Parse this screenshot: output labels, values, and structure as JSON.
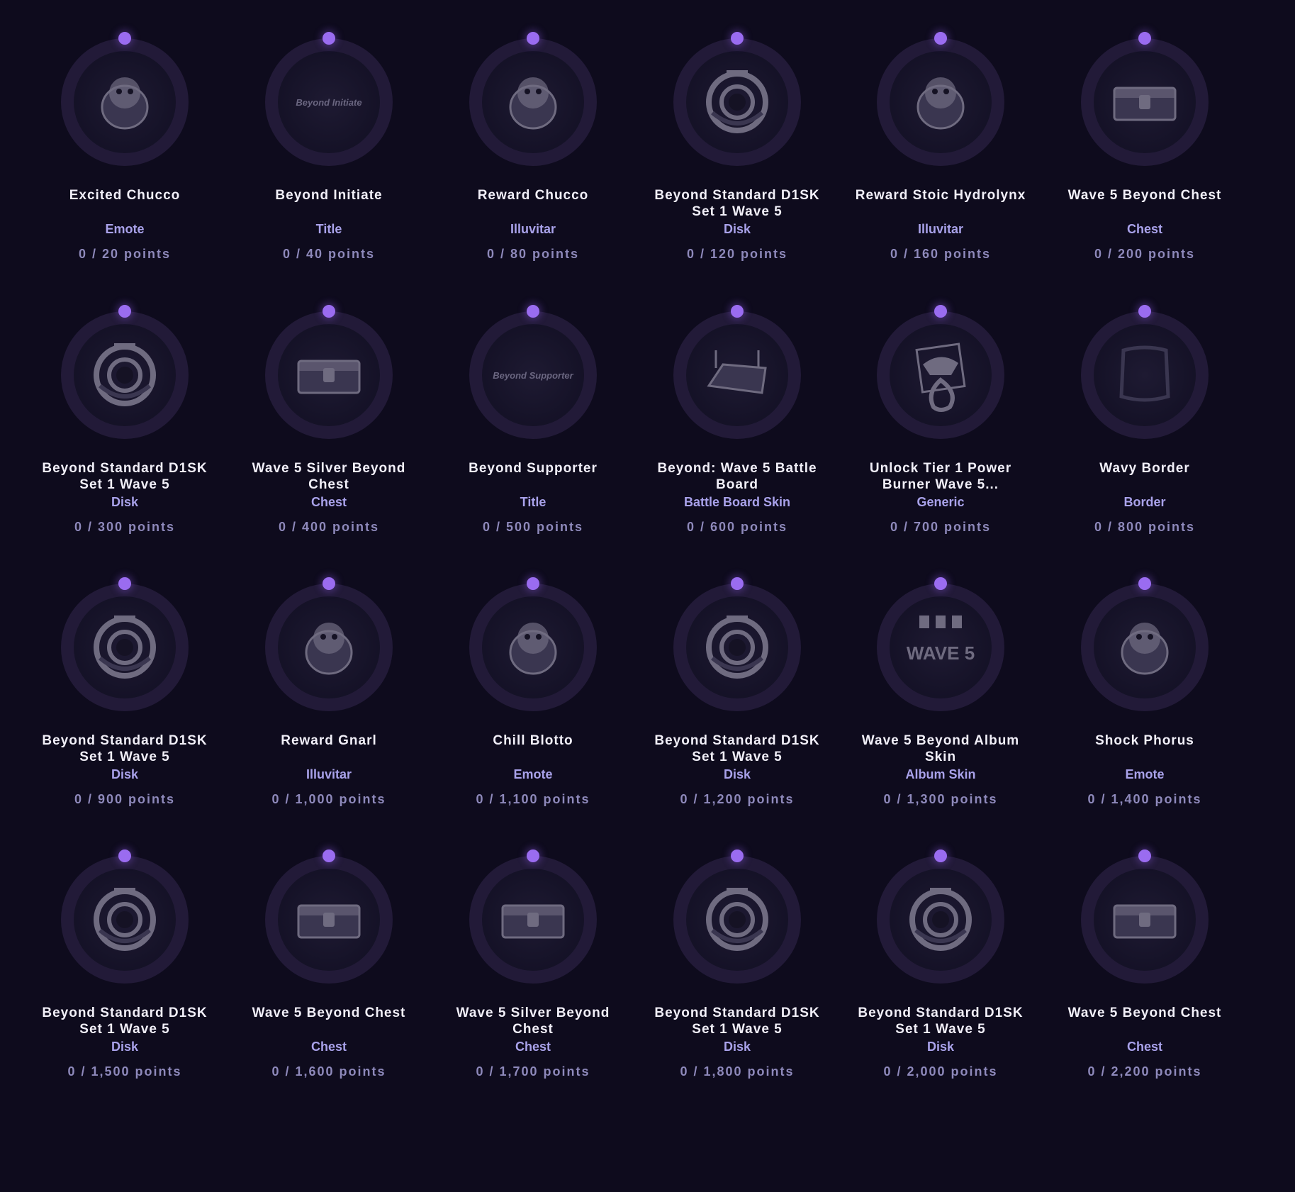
{
  "colors": {
    "background": "#0e0b1d",
    "ring": "#221a38",
    "progress_dot": "#9a6cf0",
    "type_text": "#a9a2ea",
    "points_text": "#8e89bb"
  },
  "rewards": [
    {
      "name": "Excited Chucco",
      "type": "Emote",
      "points": "0 / 20 points",
      "icon": "creature-icon"
    },
    {
      "name": "Beyond Initiate",
      "type": "Title",
      "points": "0 / 40 points",
      "icon": "title-text",
      "inner_text": "Beyond Initiate"
    },
    {
      "name": "Reward Chucco",
      "type": "Illuvitar",
      "points": "0 / 80 points",
      "icon": "creature-icon"
    },
    {
      "name": "Beyond Standard D1SK Set 1 Wave 5",
      "type": "Disk",
      "points": "0 / 120 points",
      "icon": "disk-icon"
    },
    {
      "name": "Reward Stoic Hydrolynx",
      "type": "Illuvitar",
      "points": "0 / 160 points",
      "icon": "creature-icon"
    },
    {
      "name": "Wave 5 Beyond Chest",
      "type": "Chest",
      "points": "0 / 200 points",
      "icon": "chest-icon"
    },
    {
      "name": "Beyond Standard D1SK Set 1 Wave 5",
      "type": "Disk",
      "points": "0 / 300 points",
      "icon": "disk-icon"
    },
    {
      "name": "Wave 5 Silver Beyond Chest",
      "type": "Chest",
      "points": "0 / 400 points",
      "icon": "chest-icon"
    },
    {
      "name": "Beyond Supporter",
      "type": "Title",
      "points": "0 / 500 points",
      "icon": "title-text",
      "inner_text": "Beyond Supporter"
    },
    {
      "name": "Beyond: Wave 5 Battle Board",
      "type": "Battle Board Skin",
      "points": "0 / 600 points",
      "icon": "battle-board-icon"
    },
    {
      "name": "Unlock Tier 1 Power Burner Wave 5...",
      "type": "Generic",
      "points": "0 / 700 points",
      "icon": "power-burner-icon"
    },
    {
      "name": "Wavy Border",
      "type": "Border",
      "points": "0 / 800 points",
      "icon": "border-icon"
    },
    {
      "name": "Beyond Standard D1SK Set 1 Wave 5",
      "type": "Disk",
      "points": "0 / 900 points",
      "icon": "disk-icon"
    },
    {
      "name": "Reward Gnarl",
      "type": "Illuvitar",
      "points": "0 / 1,000 points",
      "icon": "creature-icon"
    },
    {
      "name": "Chill Blotto",
      "type": "Emote",
      "points": "0 / 1,100 points",
      "icon": "creature-icon"
    },
    {
      "name": "Beyond Standard D1SK Set 1 Wave 5",
      "type": "Disk",
      "points": "0 / 1,200 points",
      "icon": "disk-icon"
    },
    {
      "name": "Wave 5 Beyond Album Skin",
      "type": "Album Skin",
      "points": "0 / 1,300 points",
      "icon": "album-icon",
      "inner_text": "WAVE 5"
    },
    {
      "name": "Shock Phorus",
      "type": "Emote",
      "points": "0 / 1,400 points",
      "icon": "creature-icon"
    },
    {
      "name": "Beyond Standard D1SK Set 1 Wave 5",
      "type": "Disk",
      "points": "0 / 1,500 points",
      "icon": "disk-icon"
    },
    {
      "name": "Wave 5 Beyond Chest",
      "type": "Chest",
      "points": "0 / 1,600 points",
      "icon": "chest-icon"
    },
    {
      "name": "Wave 5 Silver Beyond Chest",
      "type": "Chest",
      "points": "0 / 1,700 points",
      "icon": "chest-icon"
    },
    {
      "name": "Beyond Standard D1SK Set 1 Wave 5",
      "type": "Disk",
      "points": "0 / 1,800 points",
      "icon": "disk-icon"
    },
    {
      "name": "Beyond Standard D1SK Set 1 Wave 5",
      "type": "Disk",
      "points": "0 / 2,000 points",
      "icon": "disk-icon"
    },
    {
      "name": "Wave 5 Beyond Chest",
      "type": "Chest",
      "points": "0 / 2,200 points",
      "icon": "chest-icon"
    }
  ]
}
